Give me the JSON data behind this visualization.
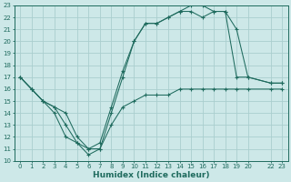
{
  "xlabel": "Humidex (Indice chaleur)",
  "bg_color": "#cde8e8",
  "grid_color": "#aacece",
  "line_color": "#1f6b5e",
  "xlim": [
    -0.5,
    23.5
  ],
  "ylim": [
    10,
    23
  ],
  "xticks": [
    0,
    1,
    2,
    3,
    4,
    5,
    6,
    7,
    8,
    9,
    10,
    11,
    12,
    13,
    14,
    15,
    16,
    17,
    18,
    19,
    20,
    22,
    23
  ],
  "yticks": [
    10,
    11,
    12,
    13,
    14,
    15,
    16,
    17,
    18,
    19,
    20,
    21,
    22,
    23
  ],
  "series1_x": [
    0,
    1,
    2,
    3,
    4,
    5,
    6,
    7,
    8,
    9,
    10,
    11,
    12,
    13,
    14,
    15,
    16,
    17,
    18,
    19,
    20,
    22,
    23
  ],
  "series1_y": [
    17,
    16,
    15,
    14,
    12,
    11.5,
    10.5,
    11,
    13,
    14.5,
    15,
    15.5,
    15.5,
    15.5,
    16,
    16,
    16,
    16,
    16,
    16,
    16,
    16,
    16
  ],
  "series2_x": [
    0,
    1,
    2,
    3,
    4,
    5,
    6,
    7,
    8,
    9,
    10,
    11,
    12,
    13,
    14,
    15,
    16,
    17,
    18,
    19,
    20,
    22,
    23
  ],
  "series2_y": [
    17,
    16,
    15,
    14.5,
    13,
    11.5,
    11,
    11,
    14,
    17,
    20,
    21.5,
    21.5,
    22,
    22.5,
    23,
    23,
    22.5,
    22.5,
    17,
    17,
    16.5,
    16.5
  ],
  "series3_x": [
    0,
    1,
    2,
    3,
    4,
    5,
    6,
    7,
    8,
    9,
    10,
    11,
    12,
    13,
    14,
    15,
    16,
    17,
    18,
    19,
    20,
    22,
    23
  ],
  "series3_y": [
    17,
    16,
    15,
    14.5,
    14,
    12,
    11,
    11.5,
    14.5,
    17.5,
    20,
    21.5,
    21.5,
    22,
    22.5,
    22.5,
    22,
    22.5,
    22.5,
    21,
    17,
    16.5,
    16.5
  ]
}
